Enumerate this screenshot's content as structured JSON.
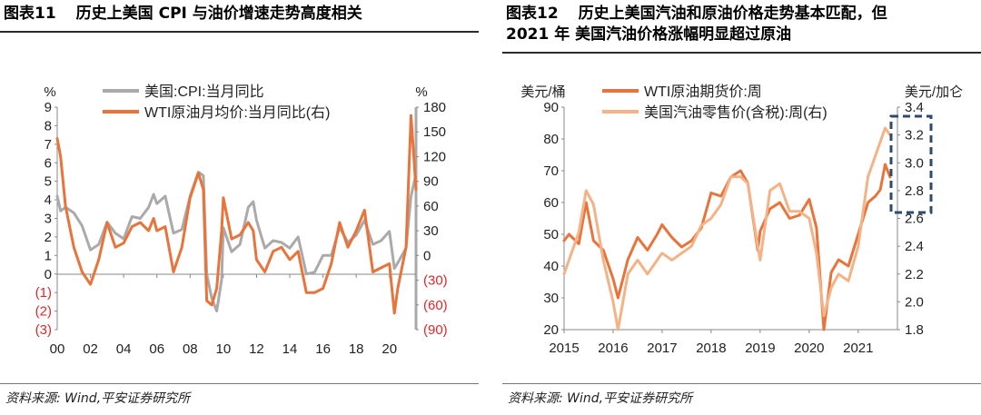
{
  "left": {
    "title_num": "图表11",
    "title_text": "历史上美国 CPI 与油价增速走势高度相关",
    "source": "资料来源: Wind,平安证券研究所",
    "chart_data": {
      "type": "line",
      "y_unit_left": "%",
      "y_unit_right": "%",
      "y_left_ticks": [
        "9",
        "8",
        "7",
        "6",
        "5",
        "4",
        "3",
        "2",
        "1",
        "0",
        "(1)",
        "(2)",
        "(3)"
      ],
      "y_right_ticks": [
        "180",
        "150",
        "120",
        "90",
        "60",
        "30",
        "0",
        "(30)",
        "(60)",
        "(90)"
      ],
      "x_ticks": [
        "00",
        "02",
        "04",
        "06",
        "08",
        "10",
        "12",
        "14",
        "16",
        "18",
        "20"
      ],
      "ylim_left": [
        -3,
        9
      ],
      "ylim_right": [
        -90,
        180
      ],
      "negative_tick_color": "#e0282a",
      "series": [
        {
          "name": "美国:CPI:当月同比",
          "axis": "left",
          "color": "#aaaaaa",
          "x": [
            2000,
            2000.2,
            2000.5,
            2001,
            2001.5,
            2002,
            2002.5,
            2003,
            2003.5,
            2004,
            2004.5,
            2005,
            2005.5,
            2005.8,
            2006,
            2006.5,
            2007,
            2007.5,
            2008,
            2008.5,
            2008.8,
            2009,
            2009.3,
            2009.6,
            2009.9,
            2010,
            2010.5,
            2011,
            2011.5,
            2011.8,
            2012,
            2012.5,
            2013,
            2013.5,
            2014,
            2014.5,
            2015,
            2015.5,
            2016,
            2016.5,
            2017,
            2017.5,
            2018,
            2018.5,
            2019,
            2019.5,
            2020,
            2020.3,
            2020.5,
            2021,
            2021.3,
            2021.6
          ],
          "values": [
            4.2,
            3.4,
            3.6,
            3.3,
            2.6,
            1.3,
            1.6,
            2.8,
            2.2,
            1.9,
            3.1,
            3.0,
            3.6,
            4.3,
            3.8,
            4.2,
            2.2,
            2.4,
            4.2,
            5.5,
            5.3,
            0.0,
            -1.3,
            -2.0,
            -0.3,
            2.5,
            1.2,
            1.6,
            3.6,
            3.9,
            2.9,
            1.4,
            1.8,
            1.7,
            1.4,
            2.0,
            0.0,
            0.1,
            1.0,
            1.0,
            2.5,
            1.7,
            2.1,
            2.9,
            1.6,
            1.8,
            2.3,
            0.3,
            0.6,
            1.4,
            4.2,
            5.4
          ]
        },
        {
          "name": "WTI原油月均价:当月同比(右)",
          "axis": "right",
          "color": "#e8743b",
          "x": [
            2000,
            2000.2,
            2000.5,
            2001,
            2001.5,
            2002,
            2002.5,
            2003,
            2003.5,
            2004,
            2004.5,
            2005,
            2005.5,
            2005.8,
            2006,
            2006.5,
            2007,
            2007.5,
            2008,
            2008.5,
            2008.8,
            2009,
            2009.3,
            2009.6,
            2009.9,
            2010,
            2010.5,
            2011,
            2011.5,
            2011.8,
            2012,
            2012.5,
            2013,
            2013.5,
            2014,
            2014.5,
            2015,
            2015.5,
            2016,
            2016.5,
            2017,
            2017.5,
            2018,
            2018.5,
            2019,
            2019.5,
            2020,
            2020.3,
            2020.5,
            2021,
            2021.3,
            2021.6
          ],
          "values": [
            142,
            120,
            60,
            10,
            -20,
            -35,
            -5,
            40,
            10,
            15,
            35,
            40,
            30,
            45,
            30,
            35,
            -20,
            10,
            70,
            100,
            80,
            -55,
            -60,
            -40,
            30,
            70,
            20,
            25,
            40,
            30,
            -5,
            -20,
            5,
            10,
            -5,
            5,
            -45,
            -45,
            -40,
            -10,
            40,
            10,
            30,
            55,
            -20,
            -15,
            -10,
            -70,
            -40,
            10,
            170,
            80
          ]
        }
      ]
    }
  },
  "right": {
    "title_num": "图表12",
    "title_text": "历史上美国汽油和原油价格走势基本匹配，但\n2021 年 美国汽油价格涨幅明显超过原油",
    "source": "资料来源: Wind,平安证券研究所",
    "chart_data": {
      "type": "line",
      "y_unit_left": "美元/桶",
      "y_unit_right": "美元/加仑",
      "y_left_ticks": [
        "90",
        "80",
        "70",
        "60",
        "50",
        "40",
        "30",
        "20"
      ],
      "y_right_ticks": [
        "3.4",
        "3.2",
        "3.0",
        "2.8",
        "2.6",
        "2.4",
        "2.2",
        "2.0",
        "1.8"
      ],
      "x_ticks": [
        "2015",
        "2016",
        "2017",
        "2018",
        "2019",
        "2020",
        "2021"
      ],
      "ylim_left": [
        20,
        90
      ],
      "ylim_right": [
        1.8,
        3.4
      ],
      "series": [
        {
          "name": "WTI原油期货价:周",
          "axis": "left",
          "color": "#e8743b",
          "x": [
            2015,
            2015.1,
            2015.3,
            2015.45,
            2015.6,
            2015.8,
            2016,
            2016.1,
            2016.3,
            2016.5,
            2016.7,
            2016.9,
            2017,
            2017.2,
            2017.4,
            2017.6,
            2017.8,
            2018,
            2018.2,
            2018.4,
            2018.6,
            2018.75,
            2018.95,
            2019,
            2019.2,
            2019.4,
            2019.6,
            2019.8,
            2020,
            2020.15,
            2020.3,
            2020.45,
            2020.6,
            2020.8,
            2021,
            2021.2,
            2021.35,
            2021.45,
            2021.55,
            2021.65
          ],
          "values": [
            48,
            50,
            47,
            60,
            48,
            45,
            36,
            30,
            42,
            49,
            45,
            50,
            53,
            49,
            46,
            48,
            52,
            63,
            62,
            68,
            70,
            66,
            45,
            51,
            58,
            60,
            55,
            56,
            61,
            52,
            20,
            38,
            42,
            40,
            50,
            60,
            62,
            64,
            72,
            68
          ]
        },
        {
          "name": "美国汽油零售价(含税):周(右)",
          "axis": "right",
          "color": "#f4b287",
          "x": [
            2015,
            2015.1,
            2015.3,
            2015.45,
            2015.6,
            2015.8,
            2016,
            2016.1,
            2016.3,
            2016.5,
            2016.7,
            2016.9,
            2017,
            2017.2,
            2017.4,
            2017.6,
            2017.8,
            2018,
            2018.2,
            2018.4,
            2018.6,
            2018.75,
            2018.95,
            2019,
            2019.2,
            2019.4,
            2019.6,
            2019.8,
            2020,
            2020.15,
            2020.3,
            2020.45,
            2020.6,
            2020.8,
            2021,
            2021.2,
            2021.35,
            2021.45,
            2021.55,
            2021.65
          ],
          "values": [
            2.2,
            2.3,
            2.5,
            2.8,
            2.7,
            2.3,
            2.0,
            1.8,
            2.2,
            2.3,
            2.2,
            2.3,
            2.35,
            2.3,
            2.35,
            2.4,
            2.55,
            2.6,
            2.7,
            2.9,
            2.9,
            2.85,
            2.4,
            2.3,
            2.8,
            2.85,
            2.65,
            2.65,
            2.6,
            2.35,
            1.9,
            2.1,
            2.2,
            2.15,
            2.4,
            2.9,
            3.05,
            3.15,
            3.25,
            3.2
          ]
        }
      ],
      "annotation": "dashed-box-2021"
    }
  }
}
